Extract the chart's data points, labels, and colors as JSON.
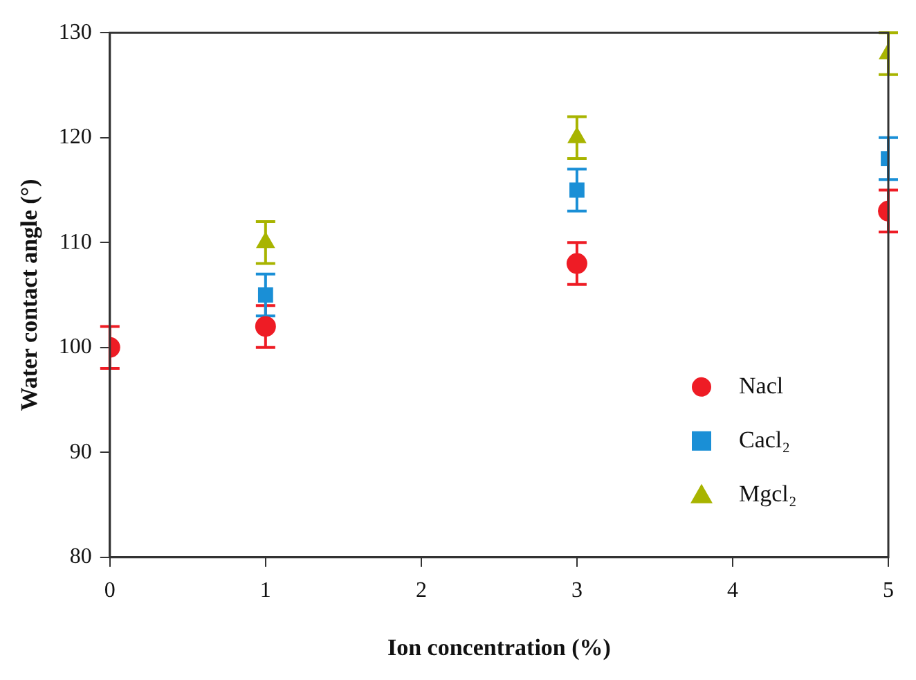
{
  "chart_data": {
    "type": "scatter",
    "xlabel": "Ion concentration (%)",
    "ylabel": "Water contact angle (°)",
    "x": [
      0,
      1,
      3,
      5
    ],
    "xlim": [
      0,
      5
    ],
    "xticks": [
      0,
      1,
      2,
      3,
      4,
      5
    ],
    "ylim": [
      80,
      130
    ],
    "yticks": [
      80,
      90,
      100,
      110,
      120,
      130
    ],
    "grid": false,
    "legend": "bottom right",
    "series": [
      {
        "name": "Nacl",
        "color": "#ee1c25",
        "marker": "circle",
        "values": [
          100,
          102,
          108,
          113
        ],
        "errors": [
          2,
          2,
          2,
          2
        ]
      },
      {
        "name": "Cacl₂",
        "color": "#1a8fd6",
        "marker": "square",
        "values": [
          null,
          105,
          115,
          118
        ],
        "errors": [
          null,
          2,
          2,
          2
        ]
      },
      {
        "name": "Mgcl₂",
        "color": "#a8b400",
        "marker": "triangle",
        "values": [
          null,
          110,
          120,
          128
        ],
        "errors": [
          null,
          2,
          2,
          2
        ]
      }
    ]
  }
}
